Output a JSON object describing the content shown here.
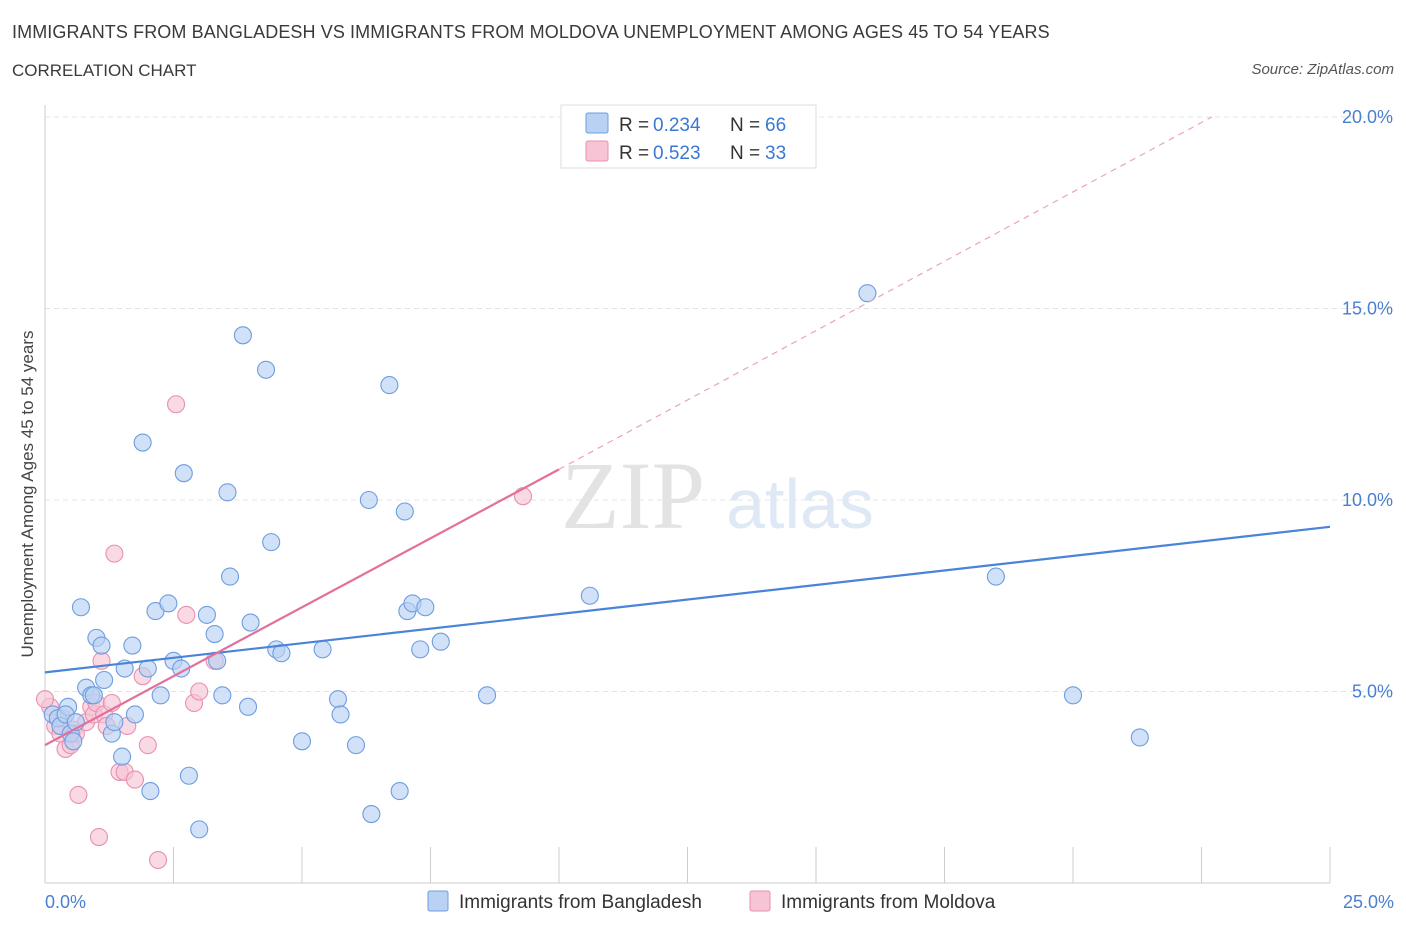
{
  "header": {
    "title": "IMMIGRANTS FROM BANGLADESH VS IMMIGRANTS FROM MOLDOVA UNEMPLOYMENT AMONG AGES 45 TO 54 YEARS",
    "subtitle": "CORRELATION CHART",
    "source": "Source: ZipAtlas.com"
  },
  "watermark": {
    "zip": "ZIP",
    "atlas": "atlas"
  },
  "colors": {
    "blue": "#4a84d8",
    "blue_fill": "#b9d1f2",
    "pink": "#e36f9c",
    "pink_fill": "#f6c4d4",
    "axis_label": "#4a7fd0"
  },
  "legend_top": {
    "rows": [
      {
        "r_label": "R =",
        "r_value": "0.234",
        "n_label": "N =",
        "n_value": "66"
      },
      {
        "r_label": "R =",
        "r_value": "0.523",
        "n_label": "N =",
        "n_value": "33"
      }
    ]
  },
  "legend_bottom": {
    "items": [
      "Immigrants from Bangladesh",
      "Immigrants from Moldova"
    ]
  },
  "chart_data": {
    "type": "scatter",
    "title": "IMMIGRANTS FROM BANGLADESH VS IMMIGRANTS FROM MOLDOVA UNEMPLOYMENT AMONG AGES 45 TO 54 YEARS",
    "xlabel": "",
    "ylabel": "Unemployment Among Ages 45 to 54 years",
    "xlim": [
      0,
      25
    ],
    "ylim": [
      0,
      20
    ],
    "x_tick_labels": [
      "0.0%",
      "25.0%"
    ],
    "y_ticks": [
      5,
      10,
      15,
      20
    ],
    "y_tick_labels": [
      "5.0%",
      "10.0%",
      "15.0%",
      "20.0%"
    ],
    "grid": true,
    "series": [
      {
        "name": "Immigrants from Bangladesh",
        "color": "#4a84d8",
        "trend": {
          "x0": 0,
          "y0": 5.5,
          "x1": 25,
          "y1": 9.3
        },
        "points": [
          [
            0.15,
            4.4
          ],
          [
            0.25,
            4.3
          ],
          [
            0.3,
            4.1
          ],
          [
            0.45,
            4.6
          ],
          [
            0.5,
            3.9
          ],
          [
            0.55,
            3.7
          ],
          [
            0.7,
            7.2
          ],
          [
            0.8,
            5.1
          ],
          [
            0.9,
            4.9
          ],
          [
            0.95,
            4.9
          ],
          [
            1.0,
            6.4
          ],
          [
            1.1,
            6.2
          ],
          [
            1.15,
            5.3
          ],
          [
            1.3,
            3.9
          ],
          [
            1.35,
            4.2
          ],
          [
            1.5,
            3.3
          ],
          [
            1.55,
            5.6
          ],
          [
            1.7,
            6.2
          ],
          [
            1.75,
            4.4
          ],
          [
            1.9,
            11.5
          ],
          [
            2.0,
            5.6
          ],
          [
            2.05,
            2.4
          ],
          [
            2.15,
            7.1
          ],
          [
            2.25,
            4.9
          ],
          [
            2.4,
            7.3
          ],
          [
            2.5,
            5.8
          ],
          [
            2.65,
            5.6
          ],
          [
            2.7,
            10.7
          ],
          [
            2.8,
            2.8
          ],
          [
            3.0,
            1.4
          ],
          [
            3.15,
            7.0
          ],
          [
            3.3,
            6.5
          ],
          [
            3.35,
            5.8
          ],
          [
            3.45,
            4.9
          ],
          [
            3.55,
            10.2
          ],
          [
            3.6,
            8.0
          ],
          [
            3.85,
            14.3
          ],
          [
            3.95,
            4.6
          ],
          [
            4.0,
            6.8
          ],
          [
            4.3,
            13.4
          ],
          [
            4.4,
            8.9
          ],
          [
            4.5,
            6.1
          ],
          [
            4.6,
            6.0
          ],
          [
            5.0,
            3.7
          ],
          [
            5.4,
            6.1
          ],
          [
            5.7,
            4.8
          ],
          [
            5.75,
            4.4
          ],
          [
            6.05,
            3.6
          ],
          [
            6.3,
            10.0
          ],
          [
            6.35,
            1.8
          ],
          [
            6.7,
            13.0
          ],
          [
            6.9,
            2.4
          ],
          [
            7.0,
            9.7
          ],
          [
            7.05,
            7.1
          ],
          [
            7.15,
            7.3
          ],
          [
            7.3,
            6.1
          ],
          [
            7.4,
            7.2
          ],
          [
            7.7,
            6.3
          ],
          [
            8.6,
            4.9
          ],
          [
            10.6,
            7.5
          ],
          [
            16.0,
            15.4
          ],
          [
            18.5,
            8.0
          ],
          [
            20.0,
            4.9
          ],
          [
            21.3,
            3.8
          ],
          [
            0.4,
            4.4
          ],
          [
            0.6,
            4.2
          ]
        ]
      },
      {
        "name": "Immigrants from Moldova",
        "color": "#e36f9c",
        "trend": {
          "x0": 0,
          "y0": 3.6,
          "x1": 10.0,
          "y1": 10.8
        },
        "trend_dashed_to": {
          "x": 22.7,
          "y": 20.0
        },
        "points": [
          [
            0.1,
            4.6
          ],
          [
            0.2,
            4.1
          ],
          [
            0.3,
            3.9
          ],
          [
            0.35,
            4.3
          ],
          [
            0.4,
            3.5
          ],
          [
            0.5,
            3.6
          ],
          [
            0.55,
            4.0
          ],
          [
            0.6,
            3.9
          ],
          [
            0.65,
            2.3
          ],
          [
            0.8,
            4.2
          ],
          [
            0.9,
            4.6
          ],
          [
            0.95,
            4.4
          ],
          [
            1.0,
            4.7
          ],
          [
            1.05,
            1.2
          ],
          [
            1.1,
            5.8
          ],
          [
            1.15,
            4.4
          ],
          [
            1.2,
            4.1
          ],
          [
            1.3,
            4.7
          ],
          [
            1.35,
            8.6
          ],
          [
            1.45,
            2.9
          ],
          [
            1.55,
            2.9
          ],
          [
            1.6,
            4.1
          ],
          [
            1.75,
            2.7
          ],
          [
            1.9,
            5.4
          ],
          [
            2.0,
            3.6
          ],
          [
            2.2,
            0.6
          ],
          [
            2.55,
            12.5
          ],
          [
            2.75,
            7.0
          ],
          [
            2.9,
            4.7
          ],
          [
            3.0,
            5.0
          ],
          [
            3.3,
            5.8
          ],
          [
            9.3,
            10.1
          ],
          [
            0.0,
            4.8
          ]
        ]
      }
    ]
  }
}
